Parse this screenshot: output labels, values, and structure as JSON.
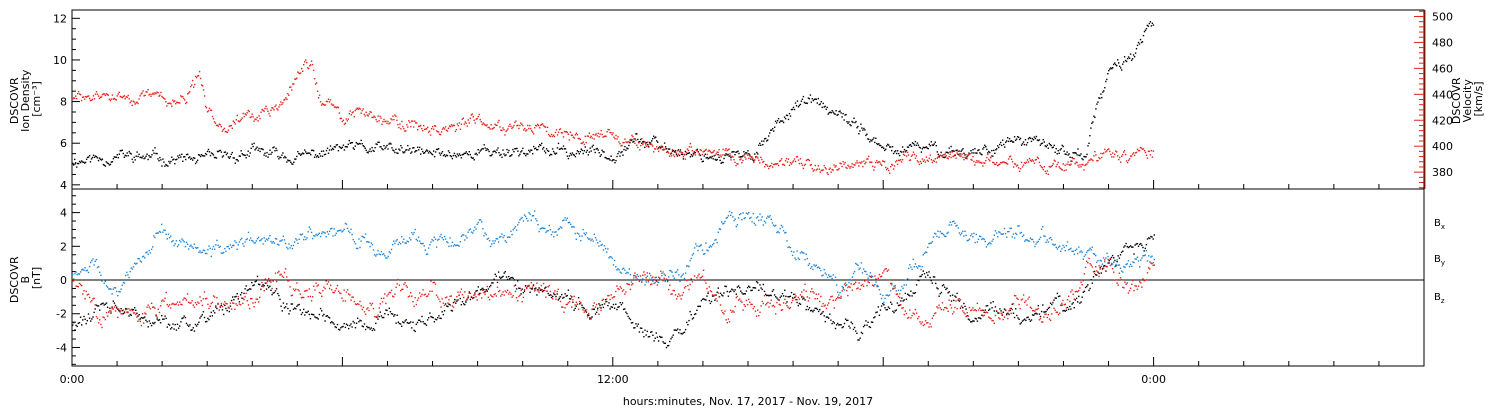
{
  "xlabel": "hours:minutes, Nov. 17, 2017 - Nov. 19, 2017",
  "x_tick_labels": [
    {
      "hours": 0,
      "label": "0:00"
    },
    {
      "hours": 12,
      "label": "12:00"
    },
    {
      "hours": 24,
      "label": "0:00"
    }
  ],
  "x_range_hours": [
    0,
    30
  ],
  "data_end_hours": 24,
  "colors": {
    "black": "#000000",
    "red": "#e8221b",
    "blue": "#1e86d8"
  },
  "chart_data": [
    {
      "type": "scatter",
      "panel": "top",
      "left_axis": {
        "label_lines": [
          "DSCOVR",
          "Ion Density",
          "[cm⁻³]"
        ],
        "ylim": [
          3.8,
          12.4
        ],
        "ticks": [
          4,
          6,
          8,
          10,
          12
        ]
      },
      "right_axis": {
        "label_lines": [
          "DSCOVR",
          "Velocity",
          "[km/s]"
        ],
        "ylim": [
          367,
          505
        ],
        "ticks": [
          380,
          400,
          420,
          440,
          460,
          480,
          500
        ],
        "color": "#e8221b"
      },
      "series": [
        {
          "axis": "left",
          "color": "#000000",
          "points": [
            [
              0,
              5.2
            ],
            [
              1,
              5.4
            ],
            [
              2,
              5.3
            ],
            [
              3,
              5.2
            ],
            [
              4,
              5.6
            ],
            [
              5,
              5.3
            ],
            [
              6,
              5.8
            ],
            [
              7,
              5.7
            ],
            [
              8,
              5.5
            ],
            [
              9,
              5.6
            ],
            [
              10,
              5.7
            ],
            [
              11,
              5.6
            ],
            [
              12,
              5.6
            ],
            [
              12.5,
              6.3
            ],
            [
              13,
              5.8
            ],
            [
              14,
              5.5
            ],
            [
              15,
              5.3
            ],
            [
              16,
              7.9
            ],
            [
              16.5,
              8.0
            ],
            [
              17,
              7.2
            ],
            [
              17.5,
              6.8
            ],
            [
              18,
              5.6
            ],
            [
              19,
              5.8
            ],
            [
              20,
              5.6
            ],
            [
              21,
              6.2
            ],
            [
              22,
              5.6
            ],
            [
              22.5,
              5.5
            ],
            [
              22.7,
              7.5
            ],
            [
              23,
              9.4
            ],
            [
              23.5,
              10.3
            ],
            [
              24,
              11.8
            ]
          ]
        },
        {
          "axis": "right",
          "color": "#e8221b",
          "points": [
            [
              0,
              437
            ],
            [
              1,
              439
            ],
            [
              1.5,
              437
            ],
            [
              2,
              438
            ],
            [
              2.5,
              435
            ],
            [
              2.8,
              455
            ],
            [
              3,
              422
            ],
            [
              3.5,
              420
            ],
            [
              4,
              423
            ],
            [
              4.5,
              427
            ],
            [
              4.8,
              440
            ],
            [
              5,
              455
            ],
            [
              5.3,
              465
            ],
            [
              5.5,
              437
            ],
            [
              6,
              422
            ],
            [
              6.5,
              428
            ],
            [
              7,
              421
            ],
            [
              7.5,
              416
            ],
            [
              8,
              415
            ],
            [
              9,
              418
            ],
            [
              10,
              417
            ],
            [
              11,
              412
            ],
            [
              12,
              410
            ],
            [
              12.5,
              402
            ],
            [
              13,
              398
            ],
            [
              14,
              395
            ],
            [
              15,
              391
            ],
            [
              16,
              385
            ],
            [
              16.5,
              382
            ],
            [
              17,
              388
            ],
            [
              18,
              388
            ],
            [
              19,
              392
            ],
            [
              19.5,
              393
            ],
            [
              20,
              390
            ],
            [
              21,
              389
            ],
            [
              21.5,
              385
            ],
            [
              22,
              383
            ],
            [
              22.5,
              388
            ],
            [
              23,
              393
            ],
            [
              24,
              395
            ]
          ]
        }
      ]
    },
    {
      "type": "scatter",
      "panel": "bottom",
      "left_axis": {
        "label_lines": [
          "DSCOVR",
          "B",
          "[nT]"
        ],
        "ylim": [
          -5.1,
          5.4
        ],
        "ticks": [
          -4,
          -2,
          0,
          2,
          4
        ]
      },
      "legend": [
        {
          "text": "B",
          "sub": "x",
          "color": "#000000"
        },
        {
          "text": "B",
          "sub": "y",
          "color": "#1e86d8"
        },
        {
          "text": "B",
          "sub": "z",
          "color": "#e8221b"
        }
      ],
      "series": [
        {
          "name": "Bx",
          "color": "#000000",
          "points": [
            [
              0,
              -2.6
            ],
            [
              0.5,
              -1.9
            ],
            [
              1,
              -1.6
            ],
            [
              1.5,
              -2.2
            ],
            [
              2,
              -2.7
            ],
            [
              2.5,
              -2.8
            ],
            [
              3,
              -2.2
            ],
            [
              3.5,
              -1.3
            ],
            [
              4,
              -0.5
            ],
            [
              4.5,
              -1.0
            ],
            [
              5,
              -1.8
            ],
            [
              5.5,
              -2.0
            ],
            [
              6,
              -2.6
            ],
            [
              6.5,
              -2.7
            ],
            [
              7,
              -1.8
            ],
            [
              7.5,
              -2.6
            ],
            [
              8,
              -2.2
            ],
            [
              9,
              -0.8
            ],
            [
              9.5,
              0.4
            ],
            [
              10,
              -0.4
            ],
            [
              10.5,
              -0.8
            ],
            [
              11,
              -1.2
            ],
            [
              11.5,
              -1.7
            ],
            [
              12,
              -1.2
            ],
            [
              12.5,
              -2.8
            ],
            [
              13,
              -3.3
            ],
            [
              13.5,
              -3.2
            ],
            [
              14,
              -1.0
            ],
            [
              15,
              -0.5
            ],
            [
              16,
              -1.0
            ],
            [
              16.5,
              -1.9
            ],
            [
              17,
              -2.5
            ],
            [
              17.5,
              -2.7
            ],
            [
              18,
              -2.1
            ],
            [
              18.5,
              -1.2
            ],
            [
              19,
              0.5
            ],
            [
              19.5,
              -1.2
            ],
            [
              20,
              -2.0
            ],
            [
              21,
              -1.8
            ],
            [
              22,
              -1.5
            ],
            [
              22.5,
              -0.5
            ],
            [
              23,
              1.0
            ],
            [
              23.5,
              1.7
            ],
            [
              24,
              2.5
            ]
          ]
        },
        {
          "name": "By",
          "color": "#1e86d8",
          "points": [
            [
              0,
              0.5
            ],
            [
              0.5,
              0.8
            ],
            [
              1,
              -1.1
            ],
            [
              1.5,
              1.7
            ],
            [
              2,
              3.0
            ],
            [
              2.5,
              2.0
            ],
            [
              3,
              1.5
            ],
            [
              3.5,
              1.8
            ],
            [
              4,
              2.4
            ],
            [
              4.5,
              2.2
            ],
            [
              5,
              2.5
            ],
            [
              5.5,
              2.9
            ],
            [
              6,
              3.0
            ],
            [
              6.5,
              2.5
            ],
            [
              7,
              1.3
            ],
            [
              7.5,
              2.5
            ],
            [
              8,
              2.3
            ],
            [
              8.5,
              2.6
            ],
            [
              9,
              3.0
            ],
            [
              9.5,
              2.5
            ],
            [
              10,
              3.7
            ],
            [
              10.5,
              3.3
            ],
            [
              11,
              3.2
            ],
            [
              11.5,
              2.5
            ],
            [
              12,
              1.2
            ],
            [
              12.5,
              0.3
            ],
            [
              13,
              0.4
            ],
            [
              13.5,
              0.4
            ],
            [
              14,
              2.0
            ],
            [
              14.5,
              3.5
            ],
            [
              15,
              3.7
            ],
            [
              15.5,
              3.5
            ],
            [
              16,
              1.5
            ],
            [
              16.5,
              1.0
            ],
            [
              17,
              -0.5
            ],
            [
              17.5,
              0.8
            ],
            [
              18,
              -1.5
            ],
            [
              18.5,
              0.5
            ],
            [
              19,
              2.2
            ],
            [
              19.5,
              3.5
            ],
            [
              20,
              2.5
            ],
            [
              21,
              2.8
            ],
            [
              21.5,
              2.6
            ],
            [
              22,
              2.1
            ],
            [
              22.5,
              1.5
            ],
            [
              23,
              1.2
            ],
            [
              23.5,
              1.2
            ],
            [
              24,
              1.0
            ]
          ]
        },
        {
          "name": "Bz",
          "color": "#e8221b",
          "points": [
            [
              0,
              0.0
            ],
            [
              0.5,
              -1.5
            ],
            [
              1,
              -1.8
            ],
            [
              1.5,
              -2.6
            ],
            [
              2,
              -1.5
            ],
            [
              2.5,
              -1.0
            ],
            [
              3,
              -0.8
            ],
            [
              3.5,
              -1.5
            ],
            [
              4,
              -1.0
            ],
            [
              4.5,
              0.3
            ],
            [
              5,
              -0.5
            ],
            [
              5.5,
              -0.8
            ],
            [
              6,
              -0.8
            ],
            [
              6.5,
              -1.5
            ],
            [
              7,
              -1.2
            ],
            [
              7.5,
              -1.0
            ],
            [
              8,
              -0.5
            ],
            [
              8.5,
              -1.0
            ],
            [
              9,
              -0.5
            ],
            [
              9.5,
              -1.5
            ],
            [
              10,
              -1.0
            ],
            [
              10.5,
              -0.6
            ],
            [
              11,
              -1.5
            ],
            [
              11.5,
              -1.8
            ],
            [
              12,
              -0.8
            ],
            [
              12.5,
              0.4
            ],
            [
              13,
              0.0
            ],
            [
              13.5,
              -0.8
            ],
            [
              14,
              -0.3
            ],
            [
              14.5,
              -1.5
            ],
            [
              15,
              -1.0
            ],
            [
              15.5,
              -1.5
            ],
            [
              16,
              -0.5
            ],
            [
              16.5,
              -1.0
            ],
            [
              17,
              -0.9
            ],
            [
              17.5,
              -0.5
            ],
            [
              18,
              0.5
            ],
            [
              18.5,
              -1.5
            ],
            [
              19,
              -2.0
            ],
            [
              19.5,
              -1.0
            ],
            [
              20,
              -1.8
            ],
            [
              20.5,
              -2.0
            ],
            [
              21,
              -1.5
            ],
            [
              21.5,
              -1.8
            ],
            [
              22,
              -1.5
            ],
            [
              22.5,
              0.5
            ],
            [
              23,
              1.0
            ],
            [
              23.5,
              -0.5
            ],
            [
              24,
              0.7
            ]
          ]
        }
      ]
    }
  ]
}
